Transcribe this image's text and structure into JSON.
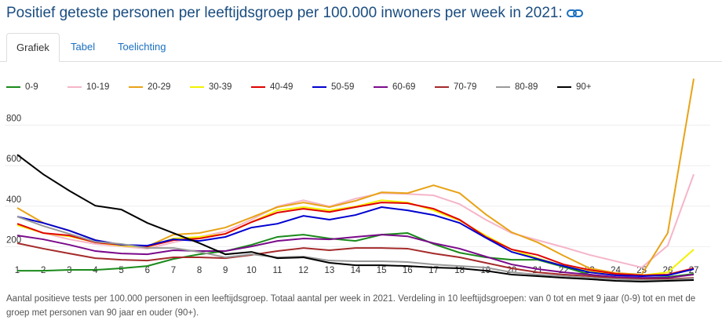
{
  "tabs": [
    "Grafiek",
    "Tabel",
    "Toelichting"
  ],
  "chart_data": {
    "type": "line",
    "title": "Positief geteste personen per leeftijdsgroep per 100.000 inwoners per week in 2021:",
    "note": "Aantal positieve tests per 100.000 personen in een leeftijdsgroep. Totaal aantal per week in 2021. Verdeling in 10 leeftijdsgroepen: van 0 tot en met 9 jaar (0-9) tot en met de groep met personen van 90 jaar en ouder (90+).",
    "categories": [
      "1",
      "2",
      "3",
      "4",
      "5",
      "6",
      "7",
      "8",
      "9",
      "10",
      "11",
      "12",
      "13",
      "14",
      "15",
      "16",
      "17",
      "18",
      "19",
      "20",
      "21",
      "22",
      "23",
      "24",
      "25",
      "26",
      "27"
    ],
    "ylim": [
      0,
      1100
    ],
    "yticks": [
      200,
      400,
      600,
      800
    ],
    "grid": true,
    "legend": "top",
    "series": [
      {
        "name": "0-9",
        "color": "#1a8a1a",
        "values": [
          81,
          81,
          85,
          85,
          93,
          104,
          139,
          162,
          178,
          209,
          248,
          259,
          240,
          228,
          259,
          267,
          213,
          170,
          147,
          135,
          135,
          100,
          62,
          46,
          43,
          50,
          66
        ]
      },
      {
        "name": "10-19",
        "color": "#f5b5c8",
        "values": [
          309,
          267,
          236,
          213,
          201,
          190,
          221,
          248,
          275,
          333,
          398,
          429,
          398,
          437,
          464,
          460,
          453,
          410,
          333,
          267,
          232,
          197,
          159,
          128,
          97,
          205,
          557
        ]
      },
      {
        "name": "20-29",
        "color": "#e8a317",
        "values": [
          391,
          317,
          279,
          232,
          209,
          201,
          259,
          267,
          294,
          344,
          395,
          418,
          395,
          426,
          468,
          464,
          503,
          464,
          360,
          271,
          221,
          155,
          93,
          70,
          62,
          267,
          1029
        ]
      },
      {
        "name": "30-39",
        "color": "#f2f200",
        "values": [
          306,
          267,
          251,
          221,
          205,
          197,
          240,
          248,
          263,
          321,
          379,
          395,
          379,
          398,
          429,
          418,
          379,
          329,
          255,
          186,
          143,
          104,
          77,
          62,
          58,
          73,
          186
        ]
      },
      {
        "name": "40-49",
        "color": "#e00000",
        "values": [
          313,
          267,
          255,
          221,
          209,
          201,
          232,
          240,
          263,
          321,
          368,
          387,
          371,
          395,
          418,
          414,
          387,
          333,
          248,
          186,
          159,
          112,
          85,
          66,
          58,
          62,
          93
        ]
      },
      {
        "name": "50-59",
        "color": "#0000d0",
        "values": [
          348,
          317,
          279,
          232,
          209,
          205,
          236,
          228,
          248,
          294,
          313,
          352,
          333,
          356,
          395,
          379,
          356,
          317,
          244,
          174,
          139,
          104,
          73,
          58,
          54,
          58,
          89
        ]
      },
      {
        "name": "60-69",
        "color": "#7a0a8a",
        "values": [
          255,
          236,
          209,
          178,
          166,
          162,
          182,
          178,
          178,
          201,
          228,
          240,
          236,
          248,
          259,
          251,
          217,
          190,
          151,
          112,
          89,
          73,
          62,
          50,
          46,
          46,
          62
        ]
      },
      {
        "name": "70-79",
        "color": "#a52a2a",
        "values": [
          217,
          190,
          166,
          143,
          135,
          131,
          147,
          147,
          143,
          159,
          178,
          193,
          182,
          193,
          193,
          190,
          166,
          147,
          120,
          93,
          73,
          62,
          54,
          43,
          39,
          39,
          46
        ]
      },
      {
        "name": "80-89",
        "color": "#999999",
        "values": [
          348,
          302,
          263,
          224,
          213,
          193,
          193,
          174,
          147,
          162,
          147,
          151,
          131,
          128,
          128,
          124,
          112,
          104,
          97,
          73,
          62,
          54,
          46,
          39,
          35,
          35,
          43
        ]
      },
      {
        "name": "90+",
        "color": "#000000",
        "values": [
          654,
          557,
          476,
          402,
          383,
          317,
          267,
          217,
          162,
          174,
          143,
          147,
          120,
          108,
          108,
          104,
          97,
          93,
          81,
          62,
          54,
          46,
          39,
          31,
          27,
          31,
          35
        ]
      }
    ]
  }
}
